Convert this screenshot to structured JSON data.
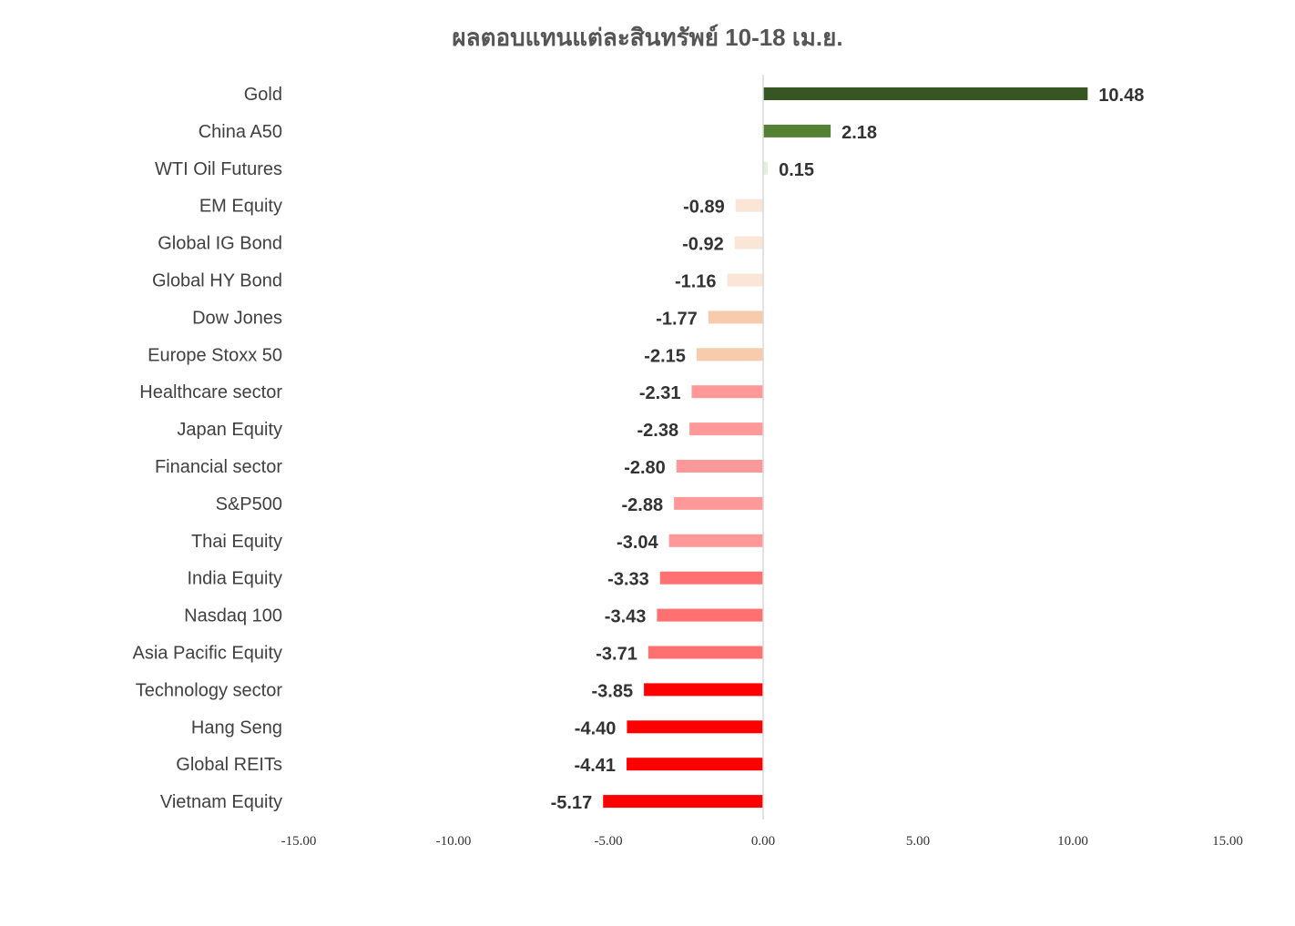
{
  "chart_data": {
    "type": "bar",
    "orientation": "horizontal",
    "title": "ผลตอบแทนแต่ละสินทรัพย์ 10-18 เม.ย.",
    "xlabel": "",
    "ylabel": "",
    "xlim": [
      -15,
      15
    ],
    "xticks": [
      -15,
      -10,
      -5,
      0,
      5,
      10,
      15
    ],
    "xtick_labels": [
      "-15.00",
      "-10.00",
      "-5.00",
      "0.00",
      "5.00",
      "10.00",
      "15.00"
    ],
    "grid": false,
    "legend": "none",
    "categories": [
      "Gold",
      "China A50",
      "WTI Oil Futures",
      "EM Equity",
      "Global IG Bond",
      "Global HY Bond",
      "Dow Jones",
      "Europe Stoxx 50",
      "Healthcare sector",
      "Japan Equity",
      "Financial sector",
      "S&P500",
      "Thai Equity",
      "India Equity",
      "Nasdaq 100",
      "Asia Pacific Equity",
      "Technology sector",
      "Hang Seng",
      "Global REITs",
      "Vietnam Equity"
    ],
    "values": [
      10.48,
      2.18,
      0.15,
      -0.89,
      -0.92,
      -1.16,
      -1.77,
      -2.15,
      -2.31,
      -2.38,
      -2.8,
      -2.88,
      -3.04,
      -3.33,
      -3.43,
      -3.71,
      -3.85,
      -4.4,
      -4.41,
      -5.17
    ],
    "value_labels": [
      "10.48",
      "2.18",
      "0.15",
      "-0.89",
      "-0.92",
      "-1.16",
      "-1.77",
      "-2.15",
      "-2.31",
      "-2.38",
      "-2.80",
      "-2.88",
      "-3.04",
      "-3.33",
      "-3.43",
      "-3.71",
      "-3.85",
      "-4.40",
      "-4.41",
      "-5.17"
    ],
    "colors": [
      "#375623",
      "#548235",
      "#e2efda",
      "#fbe5d6",
      "#fbe5d6",
      "#fbe5d6",
      "#f8cbad",
      "#f8cbad",
      "#ff9999",
      "#ff9999",
      "#ff9999",
      "#ff9999",
      "#ff9999",
      "#ff7171",
      "#ff7171",
      "#ff7171",
      "#ff0000",
      "#ff0000",
      "#ff0000",
      "#ff0000"
    ],
    "axis_color": "#d9d9d9"
  }
}
